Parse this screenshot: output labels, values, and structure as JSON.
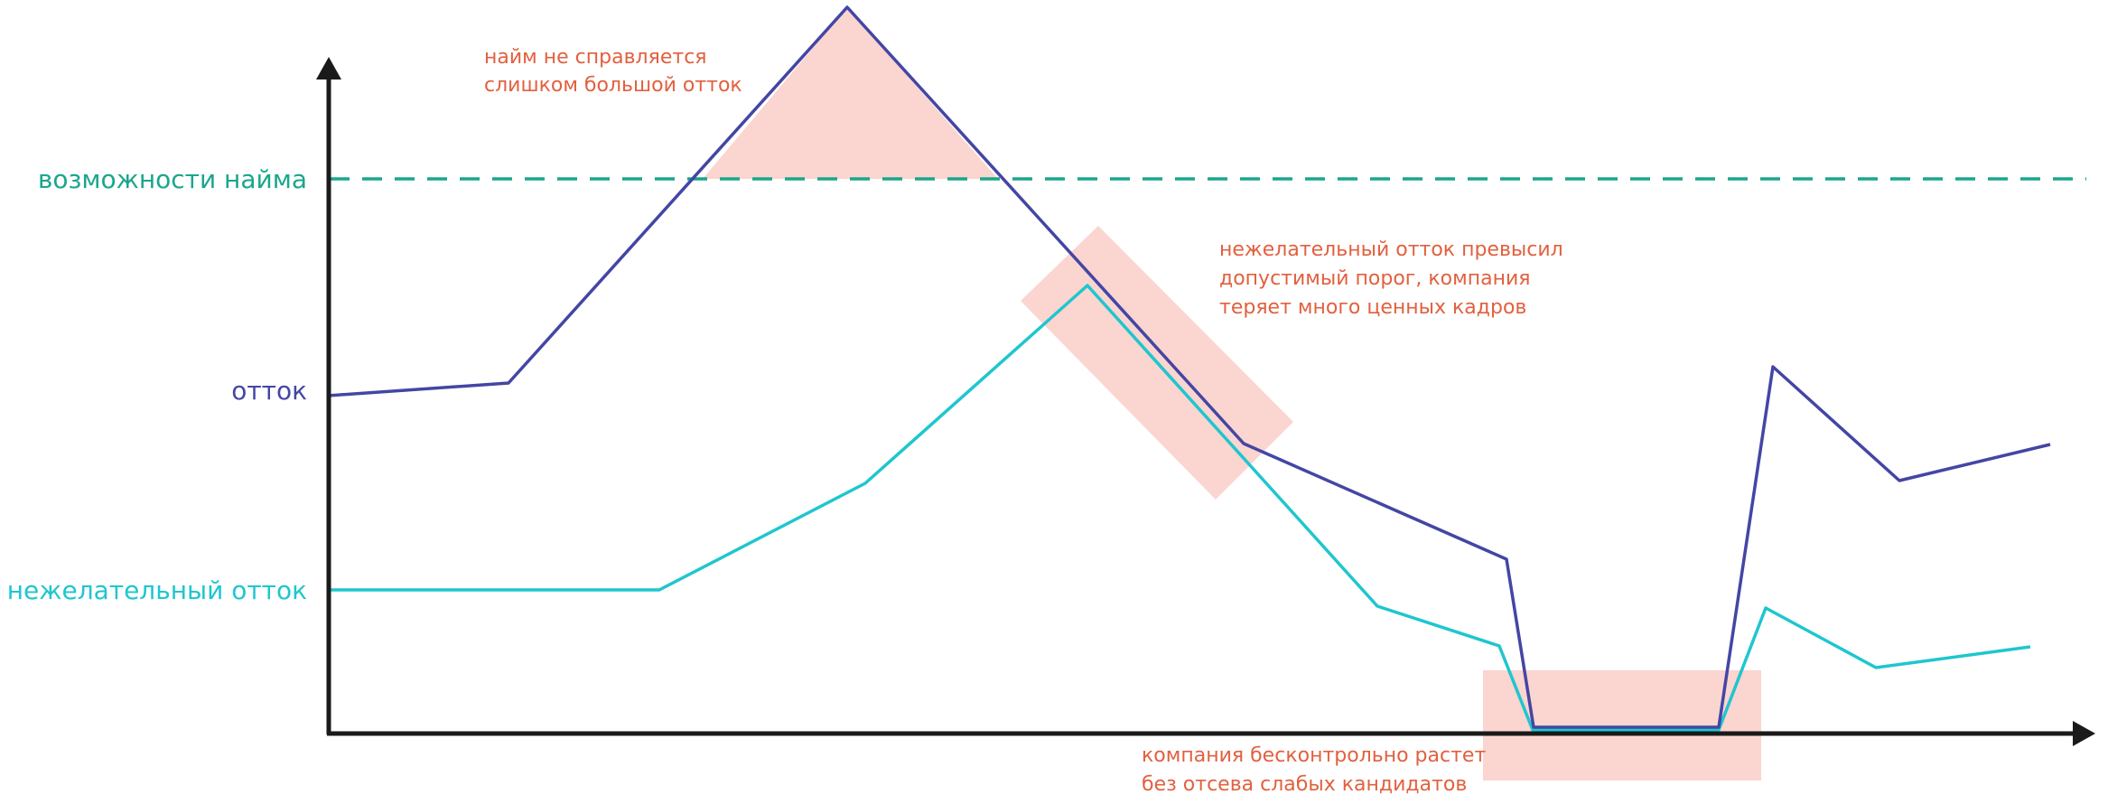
{
  "labels": {
    "hiring_capacity": "возможности найма",
    "churn": "отток",
    "unwanted_churn": "нежелательный отток"
  },
  "annotations": {
    "peak": [
      "найм не справляется",
      "слишком большой отток"
    ],
    "middle": [
      "нежелательный отток превысил",
      "допустимый порог, компания",
      "теряет много ценных кадров"
    ],
    "bottom": [
      "компания бесконтрольно растет",
      "без отсева слабых кандидатов"
    ]
  },
  "colors": {
    "axis": "#1a1a1a",
    "hiring_capacity": "#1aa68c",
    "churn": "#4446a4",
    "unwanted_churn": "#1fc6cf",
    "highlight": "#fbd5cf",
    "annotation_text": "#e2603f"
  }
}
